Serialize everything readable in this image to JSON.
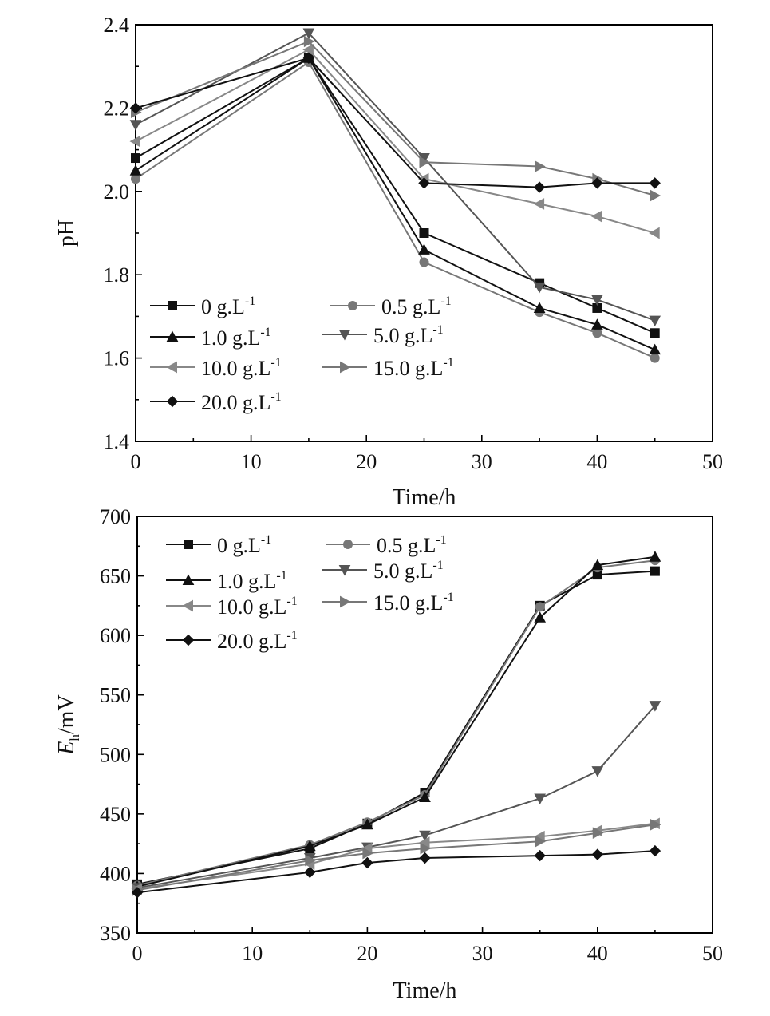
{
  "chart_data": [
    {
      "type": "line",
      "xlabel": "Time/h",
      "ylabel": "pH",
      "xlim": [
        0,
        50
      ],
      "ylim": [
        1.4,
        2.4
      ],
      "xticks": [
        "0",
        "10",
        "20",
        "30",
        "40",
        "50"
      ],
      "yticks": [
        "1.4",
        "1.6",
        "1.8",
        "2.0",
        "2.2",
        "2.4"
      ],
      "grid": false,
      "legend_position": "bottom-left",
      "series": [
        {
          "name": "0 g·L-1",
          "label": "0 g.L",
          "sup": "-1",
          "marker": "square",
          "color": "#111111",
          "x": [
            0,
            15,
            25,
            35,
            40,
            45
          ],
          "y": [
            2.08,
            2.32,
            1.9,
            1.78,
            1.72,
            1.66
          ]
        },
        {
          "name": "0.5 g·L-1",
          "label": "0.5 g.L",
          "sup": "-1",
          "marker": "circle",
          "color": "#777777",
          "x": [
            0,
            15,
            25,
            35,
            40,
            45
          ],
          "y": [
            2.03,
            2.31,
            1.83,
            1.71,
            1.66,
            1.6
          ]
        },
        {
          "name": "1.0 g·L-1",
          "label": "1.0 g.L",
          "sup": "-1",
          "marker": "triangle-up",
          "color": "#111111",
          "x": [
            0,
            15,
            25,
            35,
            40,
            45
          ],
          "y": [
            2.05,
            2.32,
            1.86,
            1.72,
            1.68,
            1.62
          ]
        },
        {
          "name": "5.0 g·L-1",
          "label": "5.0 g.L",
          "sup": "-1",
          "marker": "triangle-down",
          "color": "#555555",
          "x": [
            0,
            15,
            25,
            35,
            40,
            45
          ],
          "y": [
            2.16,
            2.38,
            2.08,
            1.77,
            1.74,
            1.69
          ]
        },
        {
          "name": "10.0 g·L-1",
          "label": "10.0 g.L",
          "sup": "-1",
          "marker": "triangle-left",
          "color": "#888888",
          "x": [
            0,
            15,
            25,
            35,
            40,
            45
          ],
          "y": [
            2.12,
            2.34,
            2.03,
            1.97,
            1.94,
            1.9
          ]
        },
        {
          "name": "15.0 g·L-1",
          "label": "15.0 g.L",
          "sup": "-1",
          "marker": "triangle-right",
          "color": "#777777",
          "x": [
            0,
            15,
            25,
            35,
            40,
            45
          ],
          "y": [
            2.19,
            2.36,
            2.07,
            2.06,
            2.03,
            1.99
          ]
        },
        {
          "name": "20.0 g·L-1",
          "label": "20.0 g.L",
          "sup": "-1",
          "marker": "diamond",
          "color": "#111111",
          "x": [
            0,
            15,
            25,
            35,
            40,
            45
          ],
          "y": [
            2.2,
            2.32,
            2.02,
            2.01,
            2.02,
            2.02
          ]
        }
      ]
    },
    {
      "type": "line",
      "xlabel": "Time/h",
      "ylabel": "E",
      "ylabel_sub": "h",
      "ylabel_unit": "/mV",
      "xlim": [
        0,
        50
      ],
      "ylim": [
        350,
        700
      ],
      "xticks": [
        "0",
        "10",
        "20",
        "30",
        "40",
        "50"
      ],
      "yticks": [
        "350",
        "400",
        "450",
        "500",
        "550",
        "600",
        "650",
        "700"
      ],
      "grid": false,
      "legend_position": "top-left",
      "series": [
        {
          "name": "0 g·L-1",
          "label": "0 g.L",
          "sup": "-1",
          "marker": "square",
          "color": "#111111",
          "x": [
            0,
            15,
            20,
            25,
            35,
            40,
            45
          ],
          "y": [
            391,
            421,
            442,
            468,
            625,
            651,
            654
          ]
        },
        {
          "name": "0.5 g·L-1",
          "label": "0.5 g.L",
          "sup": "-1",
          "marker": "circle",
          "color": "#777777",
          "x": [
            0,
            15,
            20,
            25,
            35,
            40,
            45
          ],
          "y": [
            390,
            424,
            443,
            466,
            624,
            657,
            663
          ]
        },
        {
          "name": "1.0 g·L-1",
          "label": "1.0 g.L",
          "sup": "-1",
          "marker": "triangle-up",
          "color": "#111111",
          "x": [
            0,
            15,
            20,
            25,
            35,
            40,
            45
          ],
          "y": [
            389,
            423,
            441,
            464,
            615,
            659,
            666
          ]
        },
        {
          "name": "5.0 g·L-1",
          "label": "5.0 g.L",
          "sup": "-1",
          "marker": "triangle-down",
          "color": "#555555",
          "x": [
            0,
            15,
            20,
            25,
            35,
            40,
            45
          ],
          "y": [
            388,
            413,
            422,
            432,
            463,
            486,
            541
          ]
        },
        {
          "name": "10.0 g·L-1",
          "label": "10.0 g.L",
          "sup": "-1",
          "marker": "triangle-left",
          "color": "#888888",
          "x": [
            0,
            15,
            20,
            25,
            35,
            40,
            45
          ],
          "y": [
            387,
            408,
            421,
            426,
            431,
            436,
            442
          ]
        },
        {
          "name": "15.0 g·L-1",
          "label": "15.0 g.L",
          "sup": "-1",
          "marker": "triangle-right",
          "color": "#777777",
          "x": [
            0,
            15,
            20,
            25,
            35,
            40,
            45
          ],
          "y": [
            386,
            411,
            417,
            421,
            427,
            434,
            441
          ]
        },
        {
          "name": "20.0 g·L-1",
          "label": "20.0 g.L",
          "sup": "-1",
          "marker": "diamond",
          "color": "#111111",
          "x": [
            0,
            15,
            20,
            25,
            35,
            40,
            45
          ],
          "y": [
            384,
            401,
            409,
            413,
            415,
            416,
            419
          ]
        }
      ]
    }
  ]
}
